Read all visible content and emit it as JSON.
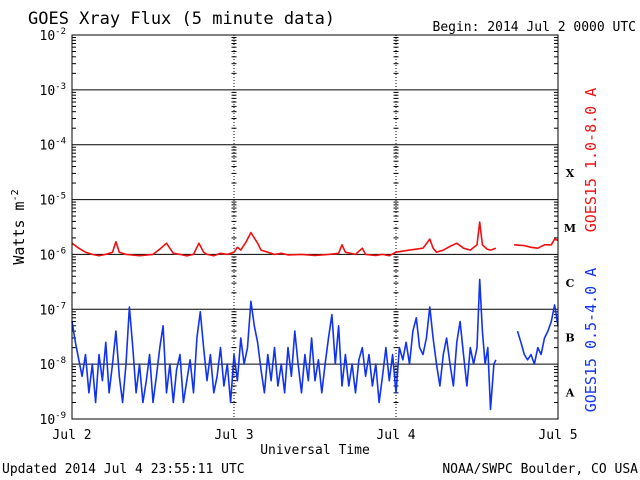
{
  "chart_data": {
    "type": "line",
    "title": "GOES Xray Flux (5 minute data)",
    "begin_text": "Begin:  2014 Jul 2 0000 UTC",
    "ylabel": "Watts m",
    "ylabel_exponent": "-2",
    "xlabel": "Universal Time",
    "footer_left": "Updated 2014 Jul  4 23:55:11 UTC",
    "footer_right": "NOAA/SWPC Boulder, CO USA",
    "y_scale": "log",
    "ylim": [
      1e-09,
      0.01
    ],
    "y_ticks": [
      {
        "base": "10",
        "exp": "-2"
      },
      {
        "base": "10",
        "exp": "-3"
      },
      {
        "base": "10",
        "exp": "-4"
      },
      {
        "base": "10",
        "exp": "-5"
      },
      {
        "base": "10",
        "exp": "-6"
      },
      {
        "base": "10",
        "exp": "-7"
      },
      {
        "base": "10",
        "exp": "-8"
      },
      {
        "base": "10",
        "exp": "-9"
      }
    ],
    "x_ticks": [
      "Jul 2",
      "Jul 3",
      "Jul 4",
      "Jul 5"
    ],
    "x_range_hours": [
      0,
      72
    ],
    "flare_classes": [
      "X",
      "M",
      "C",
      "B",
      "A"
    ],
    "grid": true,
    "series": [
      {
        "name": "GOES15 1.0-8.0 A",
        "color": "#ee1111",
        "points": [
          [
            0,
            1.6e-06
          ],
          [
            1,
            1.3e-06
          ],
          [
            2,
            1.1e-06
          ],
          [
            3,
            1e-06
          ],
          [
            4,
            9.5e-07
          ],
          [
            5,
            1e-06
          ],
          [
            6,
            1.1e-06
          ],
          [
            6.5,
            1.7e-06
          ],
          [
            7,
            1.1e-06
          ],
          [
            8,
            1e-06
          ],
          [
            10,
            9.5e-07
          ],
          [
            12,
            1e-06
          ],
          [
            13,
            1.25e-06
          ],
          [
            14,
            1.6e-06
          ],
          [
            15,
            1.05e-06
          ],
          [
            16,
            1e-06
          ],
          [
            17,
            9.4e-07
          ],
          [
            18,
            1e-06
          ],
          [
            18.8,
            1.6e-06
          ],
          [
            19.5,
            1.1e-06
          ],
          [
            20,
            1e-06
          ],
          [
            21,
            9.5e-07
          ],
          [
            22,
            1.05e-06
          ],
          [
            23,
            1e-06
          ],
          [
            24,
            1.1e-06
          ],
          [
            24.5,
            1.35e-06
          ],
          [
            25,
            1.2e-06
          ],
          [
            25.8,
            1.7e-06
          ],
          [
            26.5,
            2.5e-06
          ],
          [
            27.5,
            1.6e-06
          ],
          [
            28,
            1.2e-06
          ],
          [
            29,
            1.1e-06
          ],
          [
            30,
            1e-06
          ],
          [
            31,
            1.05e-06
          ],
          [
            32,
            9.8e-07
          ],
          [
            34,
            1e-06
          ],
          [
            36,
            9.6e-07
          ],
          [
            38,
            1e-06
          ],
          [
            39.5,
            1.05e-06
          ],
          [
            40,
            1.5e-06
          ],
          [
            40.5,
            1.1e-06
          ],
          [
            42,
            1e-06
          ],
          [
            43,
            1.3e-06
          ],
          [
            43.5,
            1e-06
          ],
          [
            45,
            9.6e-07
          ],
          [
            46,
            1e-06
          ],
          [
            47,
            9.5e-07
          ],
          [
            48,
            1.1e-06
          ],
          [
            50,
            1.2e-06
          ],
          [
            52,
            1.3e-06
          ],
          [
            53,
            1.9e-06
          ],
          [
            53.5,
            1.3e-06
          ],
          [
            54,
            1.1e-06
          ],
          [
            55,
            1.2e-06
          ],
          [
            56,
            1.4e-06
          ],
          [
            57,
            1.6e-06
          ],
          [
            58,
            1.3e-06
          ],
          [
            59,
            1.2e-06
          ],
          [
            60,
            1.5e-06
          ],
          [
            60.4,
            3.9e-06
          ],
          [
            60.8,
            1.5e-06
          ],
          [
            61.5,
            1.25e-06
          ],
          [
            62,
            1.2e-06
          ],
          [
            62.8,
            1.3e-06
          ],
          [
            null,
            null
          ],
          [
            65.5,
            1.5e-06
          ],
          [
            67,
            1.45e-06
          ],
          [
            68,
            1.35e-06
          ],
          [
            69,
            1.3e-06
          ],
          [
            70,
            1.5e-06
          ],
          [
            71,
            1.5e-06
          ],
          [
            71.5,
            1.9e-06
          ],
          [
            72,
            1.8e-06
          ]
        ]
      },
      {
        "name": "GOES15 0.5-4.0 A",
        "color": "#1133ee",
        "points": [
          [
            0,
            6e-08
          ],
          [
            0.5,
            2.5e-08
          ],
          [
            1,
            1.2e-08
          ],
          [
            1.5,
            6e-09
          ],
          [
            2,
            1.5e-08
          ],
          [
            2.5,
            3e-09
          ],
          [
            3,
            1e-08
          ],
          [
            3.5,
            2e-09
          ],
          [
            4,
            1.5e-08
          ],
          [
            4.5,
            5e-09
          ],
          [
            5,
            2.5e-08
          ],
          [
            5.5,
            3e-09
          ],
          [
            6,
            1e-08
          ],
          [
            6.5,
            4e-08
          ],
          [
            7,
            6e-09
          ],
          [
            7.5,
            2e-09
          ],
          [
            8,
            1e-08
          ],
          [
            8.5,
            1.1e-07
          ],
          [
            9,
            2e-08
          ],
          [
            9.5,
            3e-09
          ],
          [
            10,
            1e-08
          ],
          [
            10.5,
            2e-09
          ],
          [
            11,
            5e-09
          ],
          [
            11.5,
            1.5e-08
          ],
          [
            12,
            2e-09
          ],
          [
            12.5,
            6e-09
          ],
          [
            13,
            2e-08
          ],
          [
            13.5,
            5e-08
          ],
          [
            14,
            3e-09
          ],
          [
            14.5,
            1e-08
          ],
          [
            15,
            2e-09
          ],
          [
            15.5,
            8e-09
          ],
          [
            16,
            1.5e-08
          ],
          [
            16.5,
            2e-09
          ],
          [
            17,
            5e-09
          ],
          [
            17.5,
            1.2e-08
          ],
          [
            18,
            3e-09
          ],
          [
            18.5,
            3e-08
          ],
          [
            19,
            9e-08
          ],
          [
            19.5,
            2e-08
          ],
          [
            20,
            5e-09
          ],
          [
            20.5,
            1.5e-08
          ],
          [
            21,
            3e-09
          ],
          [
            21.5,
            6e-09
          ],
          [
            22,
            2e-08
          ],
          [
            22.5,
            4e-09
          ],
          [
            23,
            1e-08
          ],
          [
            23.5,
            2e-09
          ],
          [
            24,
            1.5e-08
          ],
          [
            24.5,
            5e-09
          ],
          [
            25,
            3e-08
          ],
          [
            25.5,
            1e-08
          ],
          [
            26,
            2e-08
          ],
          [
            26.5,
            1.4e-07
          ],
          [
            27,
            5e-08
          ],
          [
            27.5,
            2.5e-08
          ],
          [
            28,
            8e-09
          ],
          [
            28.5,
            3e-09
          ],
          [
            29,
            1.5e-08
          ],
          [
            29.5,
            5e-09
          ],
          [
            30,
            2e-08
          ],
          [
            30.5,
            4e-09
          ],
          [
            31,
            1e-08
          ],
          [
            31.5,
            3e-09
          ],
          [
            32,
            2e-08
          ],
          [
            32.5,
            6e-09
          ],
          [
            33,
            4e-08
          ],
          [
            33.5,
            1e-08
          ],
          [
            34,
            3e-09
          ],
          [
            34.5,
            1.5e-08
          ],
          [
            35,
            5e-09
          ],
          [
            35.5,
            3e-08
          ],
          [
            36,
            5e-09
          ],
          [
            36.5,
            1.2e-08
          ],
          [
            37,
            3e-09
          ],
          [
            37.5,
            1e-08
          ],
          [
            38,
            3e-08
          ],
          [
            38.5,
            8e-08
          ],
          [
            39,
            1e-08
          ],
          [
            39.5,
            5e-08
          ],
          [
            40,
            4e-09
          ],
          [
            40.5,
            1.5e-08
          ],
          [
            41,
            4e-09
          ],
          [
            41.5,
            1e-08
          ],
          [
            42,
            3e-09
          ],
          [
            42.5,
            1.2e-08
          ],
          [
            43,
            2e-08
          ],
          [
            43.5,
            6e-09
          ],
          [
            44,
            1.5e-08
          ],
          [
            44.5,
            4e-09
          ],
          [
            45,
            1e-08
          ],
          [
            45.5,
            2e-09
          ],
          [
            46,
            6e-09
          ],
          [
            46.5,
            2e-08
          ],
          [
            47,
            5e-09
          ],
          [
            47.5,
            1.5e-08
          ],
          [
            48,
            3e-09
          ],
          [
            48.5,
            2e-08
          ],
          [
            49,
            1.2e-08
          ],
          [
            49.5,
            2.5e-08
          ],
          [
            50,
            1e-08
          ],
          [
            50.5,
            4e-08
          ],
          [
            51,
            7e-08
          ],
          [
            51.5,
            2e-08
          ],
          [
            52,
            1.5e-08
          ],
          [
            52.5,
            3e-08
          ],
          [
            53,
            1.1e-07
          ],
          [
            53.5,
            3e-08
          ],
          [
            54,
            1e-08
          ],
          [
            54.5,
            4e-09
          ],
          [
            55,
            1.5e-08
          ],
          [
            55.5,
            3e-08
          ],
          [
            56,
            1e-08
          ],
          [
            56.5,
            4e-09
          ],
          [
            57,
            2.5e-08
          ],
          [
            57.5,
            6e-08
          ],
          [
            58,
            1.5e-08
          ],
          [
            58.5,
            4e-09
          ],
          [
            59,
            2e-08
          ],
          [
            59.5,
            1e-08
          ],
          [
            60,
            2e-08
          ],
          [
            60.4,
            3.5e-07
          ],
          [
            60.8,
            4e-08
          ],
          [
            61.2,
            1e-08
          ],
          [
            61.6,
            2e-08
          ],
          [
            62,
            1.5e-09
          ],
          [
            62.5,
            1e-08
          ],
          [
            62.8,
            1.2e-08
          ],
          [
            null,
            null
          ],
          [
            66,
            4e-08
          ],
          [
            66.5,
            2.5e-08
          ],
          [
            67,
            1.5e-08
          ],
          [
            67.5,
            1.2e-08
          ],
          [
            68,
            1.5e-08
          ],
          [
            68.5,
            1e-08
          ],
          [
            69,
            2e-08
          ],
          [
            69.5,
            1.5e-08
          ],
          [
            70,
            3e-08
          ],
          [
            70.5,
            4e-08
          ],
          [
            71,
            6e-08
          ],
          [
            71.5,
            1.2e-07
          ],
          [
            72,
            5e-08
          ]
        ]
      }
    ]
  }
}
